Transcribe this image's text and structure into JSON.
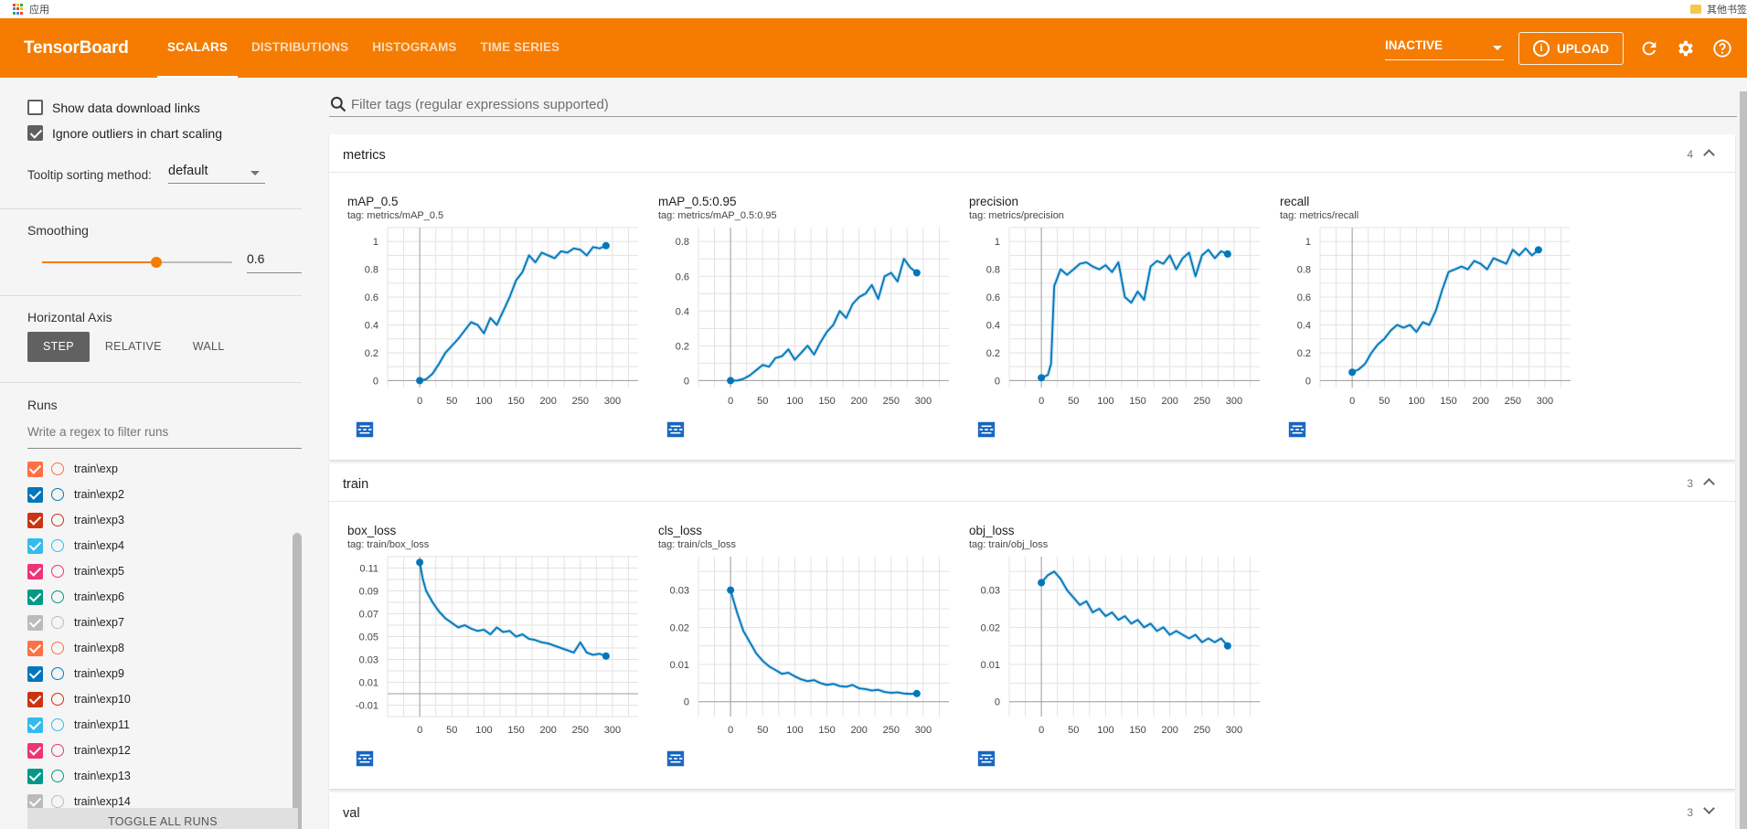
{
  "browser": {
    "apps_label": "应用",
    "other_bookmarks": "其他书签"
  },
  "header": {
    "brand": "TensorBoard",
    "tabs": [
      {
        "label": "SCALARS",
        "active": true
      },
      {
        "label": "DISTRIBUTIONS",
        "active": false
      },
      {
        "label": "HISTOGRAMS",
        "active": false
      },
      {
        "label": "TIME SERIES",
        "active": false
      }
    ],
    "status_select": "INACTIVE",
    "upload_label": "UPLOAD",
    "icons": [
      "refresh-icon",
      "gear-icon",
      "help-icon"
    ],
    "accent_color": "#f57c00"
  },
  "sidebar": {
    "show_download": {
      "label": "Show data download links",
      "checked": false
    },
    "ignore_outliers": {
      "label": "Ignore outliers in chart scaling",
      "checked": true
    },
    "tooltip_label": "Tooltip sorting method:",
    "tooltip_value": "default",
    "smoothing_label": "Smoothing",
    "smoothing_value": "0.6",
    "smoothing_fraction": 0.6,
    "horizontal_axis_label": "Horizontal Axis",
    "axis_options": [
      {
        "label": "STEP",
        "active": true
      },
      {
        "label": "RELATIVE",
        "active": false
      },
      {
        "label": "WALL",
        "active": false
      }
    ],
    "runs_label": "Runs",
    "runs_filter_placeholder": "Write a regex to filter runs",
    "runs": [
      {
        "name": "train\\exp",
        "color": "#ff7043"
      },
      {
        "name": "train\\exp2",
        "color": "#0077bb"
      },
      {
        "name": "train\\exp3",
        "color": "#cc3311"
      },
      {
        "name": "train\\exp4",
        "color": "#33bbee"
      },
      {
        "name": "train\\exp5",
        "color": "#ee3377"
      },
      {
        "name": "train\\exp6",
        "color": "#009988"
      },
      {
        "name": "train\\exp7",
        "color": "#bbbbbb"
      },
      {
        "name": "train\\exp8",
        "color": "#ff7043"
      },
      {
        "name": "train\\exp9",
        "color": "#0077bb"
      },
      {
        "name": "train\\exp10",
        "color": "#cc3311"
      },
      {
        "name": "train\\exp11",
        "color": "#33bbee"
      },
      {
        "name": "train\\exp12",
        "color": "#ee3377"
      },
      {
        "name": "train\\exp13",
        "color": "#009988"
      },
      {
        "name": "train\\exp14",
        "color": "#bbbbbb"
      }
    ],
    "toggle_all_label": "TOGGLE ALL RUNS"
  },
  "main": {
    "filter_placeholder": "Filter tags (regular expressions supported)",
    "sections": [
      {
        "title": "metrics",
        "count": "4"
      },
      {
        "title": "train",
        "count": "3"
      },
      {
        "title": "val",
        "count": "3"
      }
    ]
  },
  "chart_data": [
    {
      "type": "line",
      "section": "metrics",
      "title": "mAP_0.5",
      "tag": "tag: metrics/mAP_0.5",
      "xticks": [
        0,
        50,
        100,
        150,
        200,
        250,
        300
      ],
      "yticks": [
        0,
        0.2,
        0.4,
        0.6,
        0.8,
        1
      ],
      "xlim": [
        -50,
        340
      ],
      "ylim": [
        -0.05,
        1.1
      ],
      "series": [
        {
          "color": "#0077bb",
          "x": [
            0,
            10,
            20,
            30,
            40,
            50,
            60,
            70,
            80,
            90,
            100,
            110,
            120,
            130,
            140,
            150,
            160,
            170,
            180,
            190,
            200,
            210,
            220,
            230,
            240,
            250,
            260,
            270,
            280,
            290
          ],
          "y": [
            0,
            0.01,
            0.05,
            0.12,
            0.2,
            0.25,
            0.3,
            0.36,
            0.42,
            0.4,
            0.34,
            0.45,
            0.4,
            0.5,
            0.6,
            0.72,
            0.78,
            0.9,
            0.85,
            0.92,
            0.9,
            0.88,
            0.93,
            0.92,
            0.95,
            0.94,
            0.9,
            0.96,
            0.95,
            0.97
          ]
        }
      ]
    },
    {
      "type": "line",
      "section": "metrics",
      "title": "mAP_0.5:0.95",
      "tag": "tag: metrics/mAP_0.5:0.95",
      "xticks": [
        0,
        50,
        100,
        150,
        200,
        250,
        300
      ],
      "yticks": [
        0,
        0.2,
        0.4,
        0.6,
        0.8
      ],
      "xlim": [
        -50,
        340
      ],
      "ylim": [
        -0.04,
        0.88
      ],
      "series": [
        {
          "color": "#0077bb",
          "x": [
            0,
            10,
            20,
            30,
            40,
            50,
            60,
            70,
            80,
            90,
            100,
            110,
            120,
            130,
            140,
            150,
            160,
            170,
            180,
            190,
            200,
            210,
            220,
            230,
            240,
            250,
            260,
            270,
            280,
            290
          ],
          "y": [
            0,
            0.0,
            0.01,
            0.03,
            0.06,
            0.09,
            0.08,
            0.13,
            0.14,
            0.18,
            0.12,
            0.16,
            0.2,
            0.15,
            0.22,
            0.28,
            0.32,
            0.4,
            0.36,
            0.44,
            0.48,
            0.5,
            0.55,
            0.47,
            0.6,
            0.62,
            0.57,
            0.7,
            0.65,
            0.62
          ]
        }
      ]
    },
    {
      "type": "line",
      "section": "metrics",
      "title": "precision",
      "tag": "tag: metrics/precision",
      "xticks": [
        0,
        50,
        100,
        150,
        200,
        250,
        300
      ],
      "yticks": [
        0,
        0.2,
        0.4,
        0.6,
        0.8,
        1
      ],
      "xlim": [
        -50,
        340
      ],
      "ylim": [
        -0.05,
        1.1
      ],
      "series": [
        {
          "color": "#0077bb",
          "x": [
            0,
            10,
            15,
            20,
            30,
            40,
            50,
            60,
            70,
            80,
            90,
            100,
            110,
            120,
            130,
            140,
            150,
            160,
            170,
            180,
            190,
            200,
            210,
            220,
            230,
            240,
            250,
            260,
            270,
            280,
            290
          ],
          "y": [
            0.02,
            0.04,
            0.12,
            0.68,
            0.8,
            0.76,
            0.8,
            0.84,
            0.85,
            0.82,
            0.8,
            0.83,
            0.78,
            0.85,
            0.6,
            0.56,
            0.64,
            0.58,
            0.82,
            0.86,
            0.84,
            0.9,
            0.8,
            0.88,
            0.92,
            0.75,
            0.9,
            0.94,
            0.88,
            0.93,
            0.91
          ]
        }
      ]
    },
    {
      "type": "line",
      "section": "metrics",
      "title": "recall",
      "tag": "tag: metrics/recall",
      "xticks": [
        0,
        50,
        100,
        150,
        200,
        250,
        300
      ],
      "yticks": [
        0,
        0.2,
        0.4,
        0.6,
        0.8,
        1
      ],
      "xlim": [
        -50,
        340
      ],
      "ylim": [
        -0.05,
        1.1
      ],
      "series": [
        {
          "color": "#0077bb",
          "x": [
            0,
            10,
            20,
            30,
            40,
            50,
            60,
            70,
            80,
            90,
            100,
            110,
            120,
            130,
            140,
            150,
            160,
            170,
            180,
            190,
            200,
            210,
            220,
            230,
            240,
            250,
            260,
            270,
            280,
            290
          ],
          "y": [
            0.06,
            0.08,
            0.12,
            0.2,
            0.26,
            0.3,
            0.36,
            0.4,
            0.38,
            0.4,
            0.35,
            0.42,
            0.4,
            0.5,
            0.65,
            0.78,
            0.8,
            0.82,
            0.8,
            0.86,
            0.84,
            0.8,
            0.88,
            0.86,
            0.84,
            0.94,
            0.9,
            0.95,
            0.9,
            0.94
          ]
        }
      ]
    },
    {
      "type": "line",
      "section": "train",
      "title": "box_loss",
      "tag": "tag: train/box_loss",
      "xticks": [
        0,
        50,
        100,
        150,
        200,
        250,
        300
      ],
      "yticks": [
        -0.01,
        0.01,
        0.03,
        0.05,
        0.07,
        0.09,
        0.11
      ],
      "xlim": [
        -50,
        340
      ],
      "ylim": [
        -0.02,
        0.12
      ],
      "series": [
        {
          "color": "#0077bb",
          "x": [
            0,
            5,
            10,
            20,
            30,
            40,
            50,
            60,
            70,
            80,
            90,
            100,
            110,
            120,
            130,
            140,
            150,
            160,
            170,
            180,
            190,
            200,
            210,
            220,
            230,
            240,
            250,
            260,
            270,
            280,
            290
          ],
          "y": [
            0.115,
            0.1,
            0.09,
            0.08,
            0.072,
            0.066,
            0.062,
            0.058,
            0.06,
            0.057,
            0.055,
            0.056,
            0.052,
            0.058,
            0.054,
            0.055,
            0.05,
            0.052,
            0.048,
            0.047,
            0.045,
            0.044,
            0.042,
            0.04,
            0.038,
            0.036,
            0.045,
            0.036,
            0.034,
            0.035,
            0.033
          ]
        }
      ]
    },
    {
      "type": "line",
      "section": "train",
      "title": "cls_loss",
      "tag": "tag: train/cls_loss",
      "xticks": [
        0,
        50,
        100,
        150,
        200,
        250,
        300
      ],
      "yticks": [
        0,
        0.01,
        0.02,
        0.03
      ],
      "xlim": [
        -50,
        340
      ],
      "ylim": [
        -0.004,
        0.039
      ],
      "series": [
        {
          "color": "#0077bb",
          "x": [
            0,
            5,
            10,
            20,
            30,
            40,
            50,
            60,
            70,
            80,
            90,
            100,
            110,
            120,
            130,
            140,
            150,
            160,
            170,
            180,
            190,
            200,
            210,
            220,
            230,
            240,
            250,
            260,
            270,
            280,
            290
          ],
          "y": [
            0.03,
            0.027,
            0.024,
            0.019,
            0.016,
            0.013,
            0.011,
            0.0095,
            0.0085,
            0.0075,
            0.0078,
            0.0068,
            0.006,
            0.0055,
            0.0058,
            0.005,
            0.0045,
            0.0048,
            0.0042,
            0.004,
            0.0045,
            0.0036,
            0.0034,
            0.003,
            0.0032,
            0.0026,
            0.0024,
            0.0025,
            0.0022,
            0.0021,
            0.0022
          ]
        }
      ]
    },
    {
      "type": "line",
      "section": "train",
      "title": "obj_loss",
      "tag": "tag: train/obj_loss",
      "xticks": [
        0,
        50,
        100,
        150,
        200,
        250,
        300
      ],
      "yticks": [
        0,
        0.01,
        0.02,
        0.03
      ],
      "xlim": [
        -50,
        340
      ],
      "ylim": [
        -0.004,
        0.039
      ],
      "series": [
        {
          "color": "#0077bb",
          "x": [
            0,
            10,
            20,
            30,
            40,
            50,
            60,
            70,
            80,
            90,
            100,
            110,
            120,
            130,
            140,
            150,
            160,
            170,
            180,
            190,
            200,
            210,
            220,
            230,
            240,
            250,
            260,
            270,
            280,
            290
          ],
          "y": [
            0.032,
            0.034,
            0.035,
            0.033,
            0.03,
            0.028,
            0.026,
            0.027,
            0.024,
            0.025,
            0.023,
            0.024,
            0.022,
            0.023,
            0.021,
            0.022,
            0.02,
            0.021,
            0.019,
            0.02,
            0.018,
            0.019,
            0.018,
            0.017,
            0.018,
            0.016,
            0.017,
            0.016,
            0.017,
            0.015
          ]
        }
      ]
    }
  ]
}
